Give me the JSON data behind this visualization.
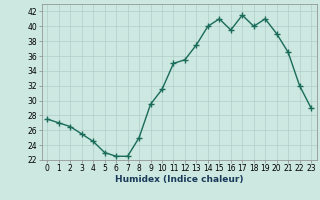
{
  "x": [
    0,
    1,
    2,
    3,
    4,
    5,
    6,
    7,
    8,
    9,
    10,
    11,
    12,
    13,
    14,
    15,
    16,
    17,
    18,
    19,
    20,
    21,
    22,
    23
  ],
  "y": [
    27.5,
    27.0,
    26.5,
    25.5,
    24.5,
    23.0,
    22.5,
    22.5,
    25.0,
    29.5,
    31.5,
    35.0,
    35.5,
    37.5,
    40.0,
    41.0,
    39.5,
    41.5,
    40.0,
    41.0,
    39.0,
    36.5,
    32.0,
    29.0
  ],
  "line_color": "#1a6b5a",
  "marker": "+",
  "markersize": 4,
  "linewidth": 1.0,
  "xlabel": "Humidex (Indice chaleur)",
  "xlim": [
    -0.5,
    23.5
  ],
  "ylim": [
    22,
    43
  ],
  "yticks": [
    22,
    24,
    26,
    28,
    30,
    32,
    34,
    36,
    38,
    40,
    42
  ],
  "xticks": [
    0,
    1,
    2,
    3,
    4,
    5,
    6,
    7,
    8,
    9,
    10,
    11,
    12,
    13,
    14,
    15,
    16,
    17,
    18,
    19,
    20,
    21,
    22,
    23
  ],
  "bg_color": "#cce8e0",
  "grid_color": "#b0cec8",
  "tick_fontsize": 5.5,
  "xlabel_fontsize": 6.5,
  "xlabel_color": "#1a3a5a",
  "spine_color": "#888888"
}
